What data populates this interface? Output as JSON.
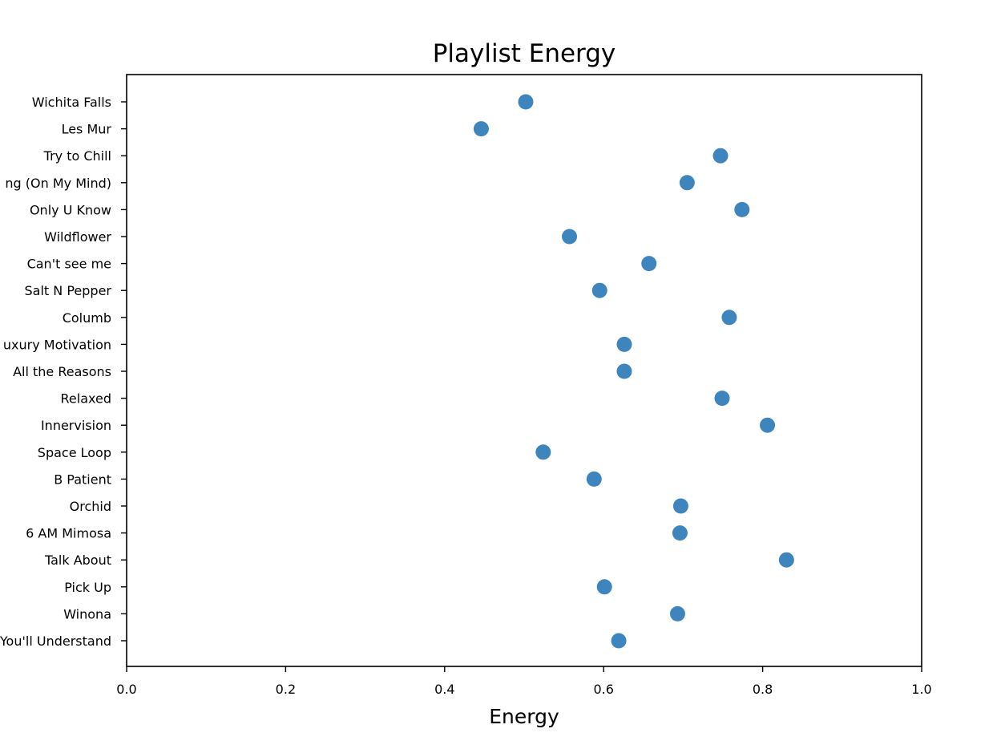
{
  "chart_data": {
    "type": "scatter",
    "title": "Playlist Energy",
    "xlabel": "Energy",
    "ylabel": "",
    "xlim": [
      0.0,
      1.0
    ],
    "xticks": [
      "0.0",
      "0.2",
      "0.4",
      "0.6",
      "0.8",
      "1.0"
    ],
    "grid": false,
    "color": "#3f85bd",
    "categories": [
      "Wichita Falls",
      "Les Mur",
      "Try to Chill",
      "ng (On My Mind)",
      "Only U Know",
      "Wildflower",
      "Can't see me",
      "Salt N Pepper",
      "Columb",
      "uxury Motivation",
      "All the Reasons",
      "Relaxed",
      "Innervision",
      "Space Loop",
      "B Patient",
      "Orchid",
      "6 AM Mimosa",
      "Talk About",
      "Pick Up",
      "Winona",
      "You'll Understand"
    ],
    "values": [
      0.502,
      0.446,
      0.747,
      0.705,
      0.774,
      0.557,
      0.657,
      0.595,
      0.758,
      0.626,
      0.626,
      0.749,
      0.806,
      0.524,
      0.588,
      0.697,
      0.696,
      0.83,
      0.601,
      0.693,
      0.619
    ]
  }
}
